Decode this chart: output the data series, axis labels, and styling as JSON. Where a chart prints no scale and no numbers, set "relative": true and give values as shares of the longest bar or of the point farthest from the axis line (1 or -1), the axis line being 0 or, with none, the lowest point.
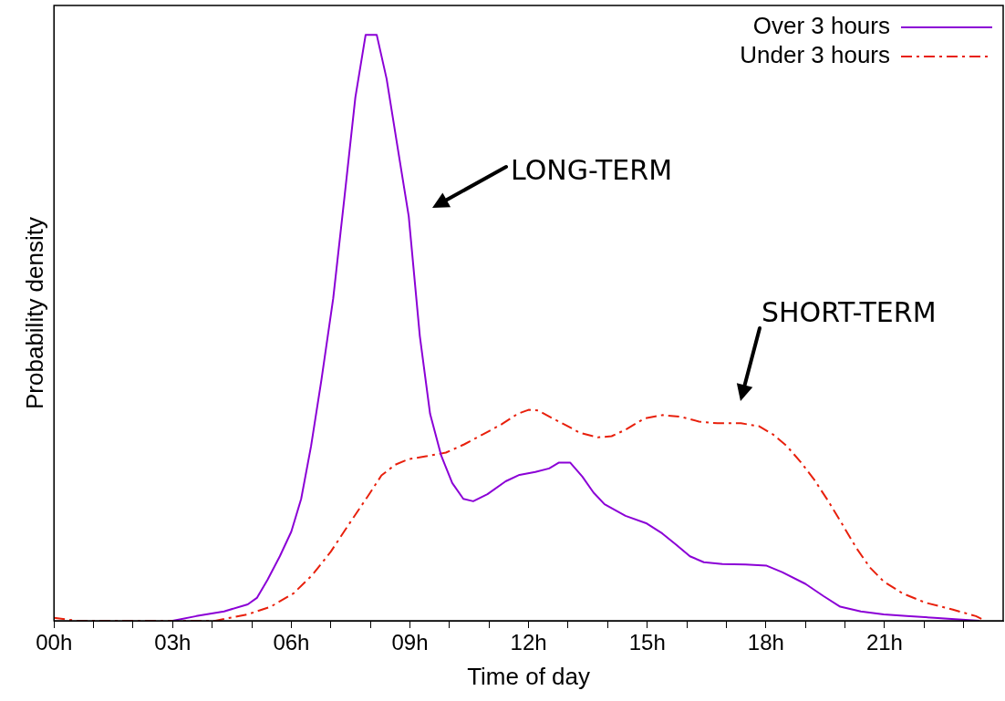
{
  "chart_data": {
    "type": "line",
    "xlabel": "Time of day",
    "ylabel": "Probability density",
    "relative": true,
    "xlim": [
      0,
      24
    ],
    "xticks": [
      {
        "value": 0,
        "label": "00h"
      },
      {
        "value": 1,
        "label": null
      },
      {
        "value": 2,
        "label": null
      },
      {
        "value": 3,
        "label": "03h"
      },
      {
        "value": 4,
        "label": null
      },
      {
        "value": 5,
        "label": null
      },
      {
        "value": 6,
        "label": "06h"
      },
      {
        "value": 7,
        "label": null
      },
      {
        "value": 8,
        "label": null
      },
      {
        "value": 9,
        "label": "09h"
      },
      {
        "value": 10,
        "label": null
      },
      {
        "value": 11,
        "label": null
      },
      {
        "value": 12,
        "label": "12h"
      },
      {
        "value": 13,
        "label": null
      },
      {
        "value": 14,
        "label": null
      },
      {
        "value": 15,
        "label": "15h"
      },
      {
        "value": 16,
        "label": null
      },
      {
        "value": 17,
        "label": null
      },
      {
        "value": 18,
        "label": "18h"
      },
      {
        "value": 19,
        "label": null
      },
      {
        "value": 20,
        "label": null
      },
      {
        "value": 21,
        "label": "21h"
      },
      {
        "value": 22,
        "label": null
      },
      {
        "value": 23,
        "label": null
      }
    ],
    "grid": false,
    "legend": "top right",
    "marker": "none",
    "annotations": [
      "LONG-TERM",
      "SHORT-TERM"
    ],
    "series": [
      {
        "name": "Over 3 hours",
        "color": "#8b00d6",
        "line_style": "solid",
        "x": [
          3,
          3.6,
          4.3,
          4.9,
          5.13,
          5.4,
          5.71,
          6,
          6.25,
          6.5,
          6.76,
          7.06,
          7.34,
          7.62,
          7.88,
          8.16,
          8.41,
          8.69,
          8.97,
          9.25,
          9.51,
          9.79,
          10.07,
          10.35,
          10.6,
          10.96,
          11.42,
          11.77,
          12.17,
          12.52,
          12.77,
          13.05,
          13.36,
          13.64,
          13.92,
          14.45,
          14.99,
          15.38,
          15.73,
          16.08,
          16.43,
          16.9,
          17.48,
          18.02,
          18.41,
          19,
          19.46,
          19.88,
          20.4,
          20.98,
          21.56,
          22.26,
          22.96,
          23.4
        ],
        "values": [
          0,
          0.008,
          0.016,
          0.028,
          0.039,
          0.07,
          0.11,
          0.152,
          0.208,
          0.298,
          0.41,
          0.55,
          0.72,
          0.893,
          1,
          1,
          0.925,
          0.807,
          0.69,
          0.486,
          0.353,
          0.282,
          0.235,
          0.208,
          0.204,
          0.216,
          0.238,
          0.249,
          0.254,
          0.26,
          0.27,
          0.27,
          0.246,
          0.219,
          0.199,
          0.179,
          0.166,
          0.149,
          0.13,
          0.11,
          0.1,
          0.097,
          0.096,
          0.094,
          0.083,
          0.063,
          0.042,
          0.024,
          0.016,
          0.011,
          0.008,
          0.005,
          0.002,
          0
        ]
      },
      {
        "name": "Under 3 hours",
        "color": "#e8200c",
        "line_style": "dashed",
        "x": [
          0,
          0.58,
          4.08,
          4.9,
          5.48,
          6.06,
          6.53,
          7,
          7.46,
          7.93,
          8.28,
          8.62,
          8.97,
          9.44,
          9.91,
          10.37,
          10.84,
          11.31,
          11.72,
          12,
          12.24,
          12.59,
          12.94,
          13.29,
          13.75,
          14.1,
          14.45,
          14.92,
          15.38,
          15.85,
          16.31,
          16.78,
          17.37,
          17.83,
          18.18,
          18.53,
          18.88,
          19.23,
          19.58,
          19.93,
          20.28,
          20.63,
          20.98,
          21.45,
          22.03,
          22.73,
          23.31,
          23.55
        ],
        "values": [
          0.005,
          0,
          0,
          0.011,
          0.024,
          0.047,
          0.078,
          0.118,
          0.165,
          0.212,
          0.248,
          0.266,
          0.276,
          0.281,
          0.287,
          0.301,
          0.318,
          0.335,
          0.353,
          0.36,
          0.359,
          0.346,
          0.334,
          0.321,
          0.313,
          0.315,
          0.326,
          0.345,
          0.351,
          0.348,
          0.34,
          0.337,
          0.337,
          0.332,
          0.318,
          0.298,
          0.271,
          0.24,
          0.204,
          0.165,
          0.125,
          0.091,
          0.067,
          0.047,
          0.031,
          0.019,
          0.008,
          0
        ]
      }
    ]
  }
}
